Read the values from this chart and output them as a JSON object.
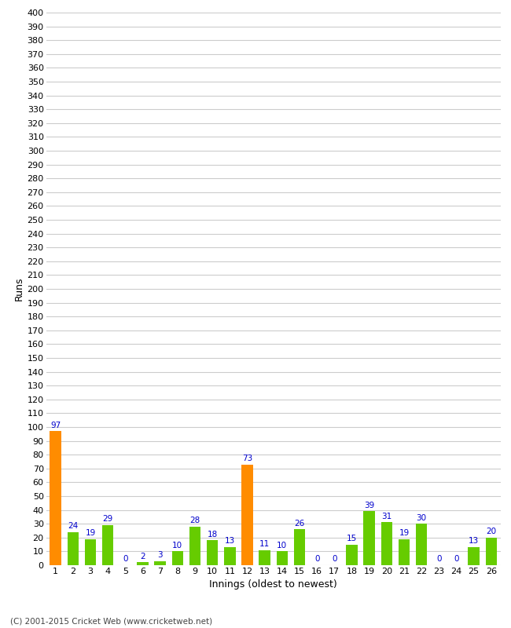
{
  "innings": [
    1,
    2,
    3,
    4,
    5,
    6,
    7,
    8,
    9,
    10,
    11,
    12,
    13,
    14,
    15,
    16,
    17,
    18,
    19,
    20,
    21,
    22,
    23,
    24,
    25,
    26
  ],
  "runs": [
    97,
    24,
    19,
    29,
    0,
    2,
    3,
    10,
    28,
    18,
    13,
    73,
    11,
    10,
    26,
    0,
    0,
    15,
    39,
    31,
    19,
    30,
    0,
    0,
    13,
    20
  ],
  "bar_colors": [
    "#ff8c00",
    "#66cc00",
    "#66cc00",
    "#66cc00",
    "#66cc00",
    "#66cc00",
    "#66cc00",
    "#66cc00",
    "#66cc00",
    "#66cc00",
    "#66cc00",
    "#ff8c00",
    "#66cc00",
    "#66cc00",
    "#66cc00",
    "#66cc00",
    "#66cc00",
    "#66cc00",
    "#66cc00",
    "#66cc00",
    "#66cc00",
    "#66cc00",
    "#66cc00",
    "#66cc00",
    "#66cc00",
    "#66cc00"
  ],
  "label_color": "#0000cc",
  "xlabel": "Innings (oldest to newest)",
  "ylabel": "Runs",
  "ylim": [
    0,
    400
  ],
  "yticks": [
    0,
    10,
    20,
    30,
    40,
    50,
    60,
    70,
    80,
    90,
    100,
    110,
    120,
    130,
    140,
    150,
    160,
    170,
    180,
    190,
    200,
    210,
    220,
    230,
    240,
    250,
    260,
    270,
    280,
    290,
    300,
    310,
    320,
    330,
    340,
    350,
    360,
    370,
    380,
    390,
    400
  ],
  "background_color": "#ffffff",
  "grid_color": "#cccccc",
  "footer": "(C) 2001-2015 Cricket Web (www.cricketweb.net)",
  "footer_color": "#444444",
  "tick_fontsize": 8,
  "label_fontsize": 9,
  "bar_label_fontsize": 7.5
}
